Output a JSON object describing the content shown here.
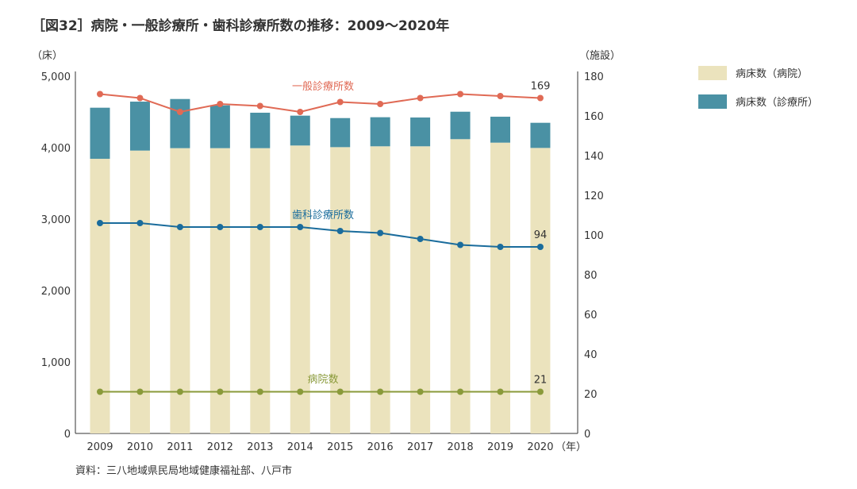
{
  "chart_data": {
    "type": "bar",
    "title": "［図32］病院・一般診療所・歯科診療所数の推移：2009～2020年",
    "source": "資料：三八地域県民局地域健康福祉部、八戸市",
    "ylabel_left": "（床）",
    "ylabel_right": "（施設）",
    "xlabel": "（年）",
    "ylim_left": [
      0,
      5000
    ],
    "ylim_right": [
      0,
      180
    ],
    "yticks_left": [
      "0",
      "1,000",
      "2,000",
      "3,000",
      "4,000",
      "5,000"
    ],
    "yticks_right": [
      "0",
      "20",
      "40",
      "60",
      "80",
      "100",
      "120",
      "140",
      "160",
      "180"
    ],
    "categories": [
      "2009",
      "2010",
      "2011",
      "2012",
      "2013",
      "2014",
      "2015",
      "2016",
      "2017",
      "2018",
      "2019",
      "2020"
    ],
    "bar_series": [
      {
        "name": "病床数（病院）",
        "color": "#ebe3bd",
        "values": [
          3844,
          3959,
          3993,
          3993,
          3993,
          4030,
          4007,
          4019,
          4019,
          4119,
          4070,
          3996
        ]
      },
      {
        "name": "病床数（診療所）",
        "color": "#4a91a4",
        "values": [
          715,
          685,
          688,
          599,
          496,
          418,
          407,
          407,
          403,
          384,
          363,
          352
        ]
      }
    ],
    "line_series": [
      {
        "name": "一般診療所数",
        "color": "#e06a55",
        "values": [
          171,
          169,
          162,
          166,
          165,
          162,
          167,
          166,
          169,
          171,
          170,
          169
        ],
        "end_label": "169"
      },
      {
        "name": "歯科診療所数",
        "color": "#1a6c9c",
        "values": [
          106,
          106,
          104,
          104,
          104,
          104,
          102,
          101,
          98,
          95,
          94,
          94
        ],
        "end_label": "94"
      },
      {
        "name": "病院数",
        "color": "#8a9a3a",
        "values": [
          21,
          21,
          21,
          21,
          21,
          21,
          21,
          21,
          21,
          21,
          21,
          21
        ],
        "end_label": "21"
      }
    ],
    "legend_position": "right"
  }
}
